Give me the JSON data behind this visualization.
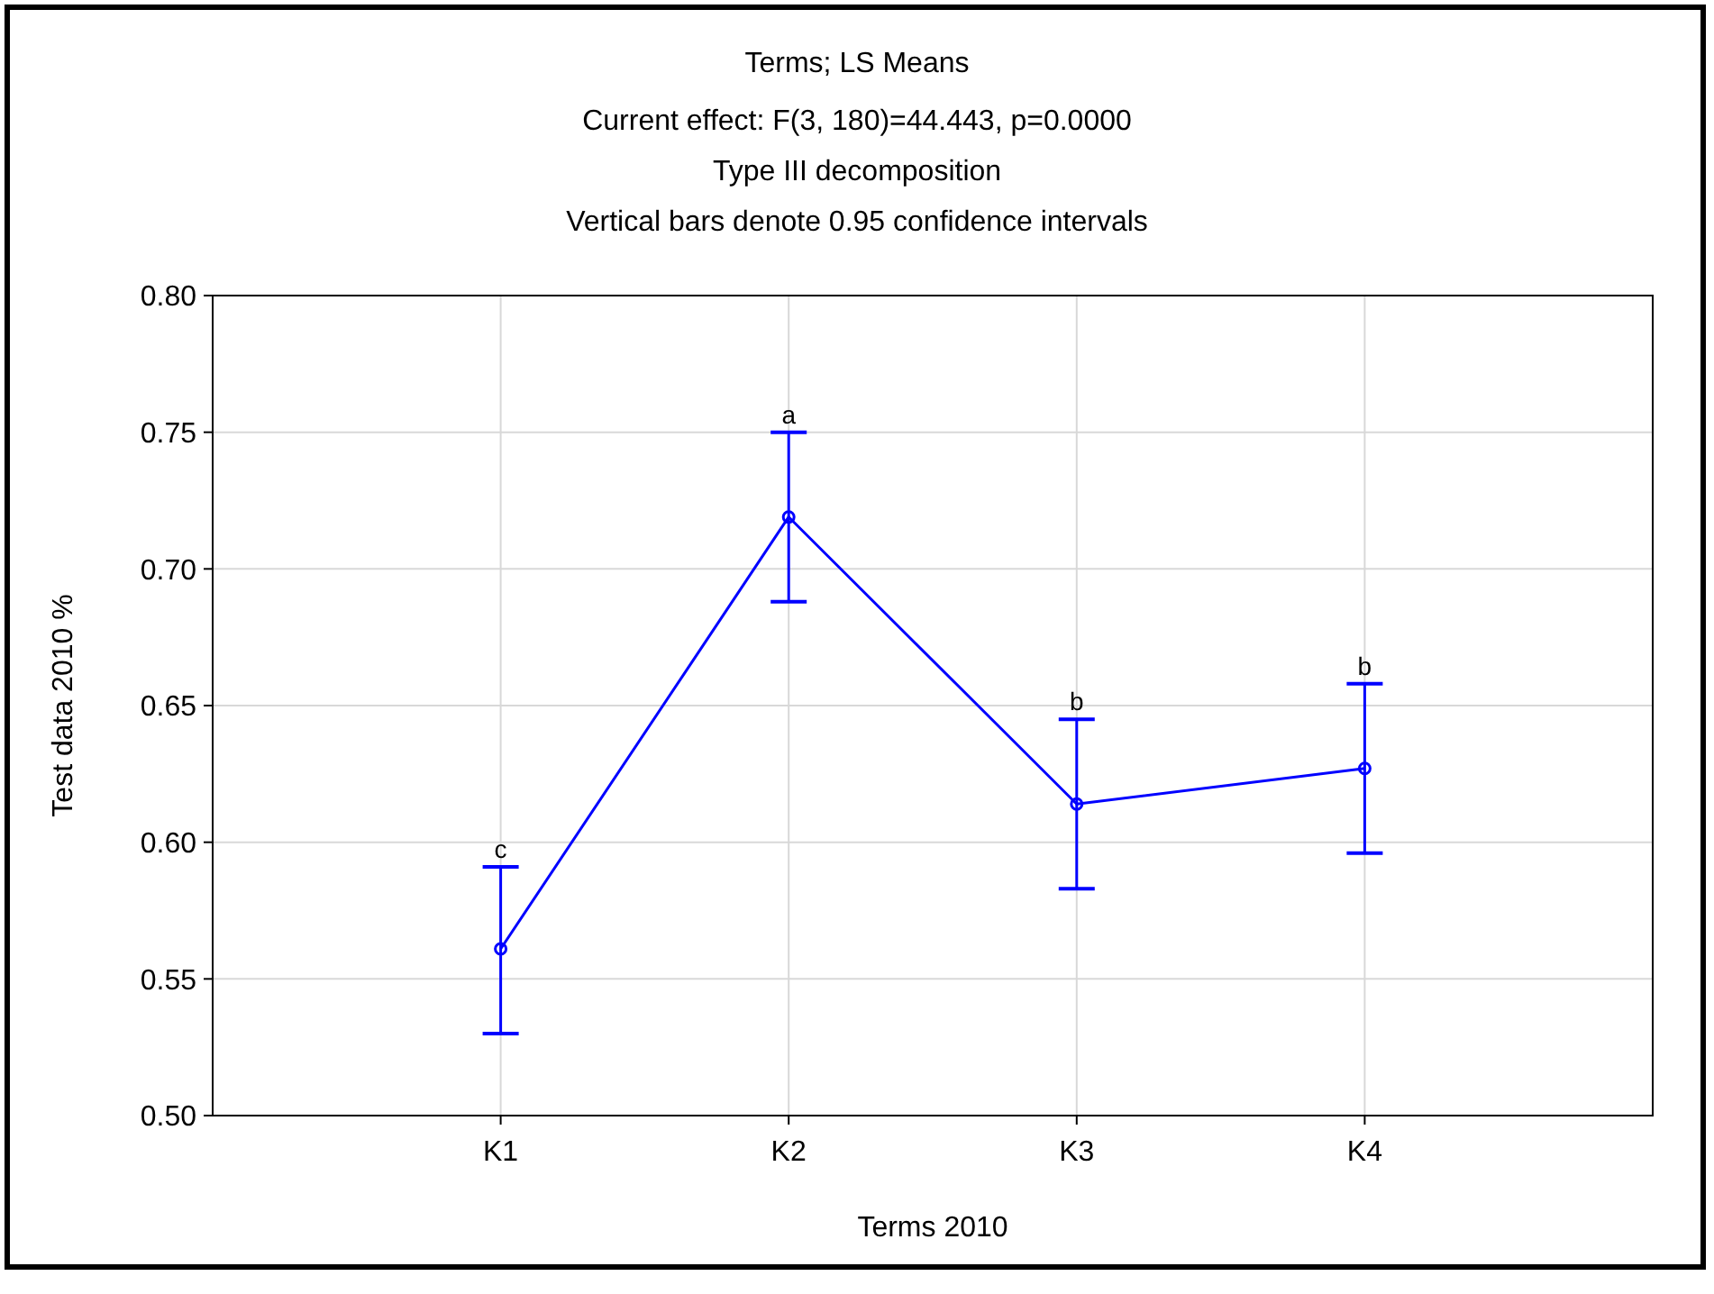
{
  "chart_data": {
    "type": "line",
    "title": "Terms; LS Means",
    "subtitle": "Current effect: F(3, 180)=44.443, p=0.0000\nType III decomposition\nVertical bars denote 0.95 confidence intervals",
    "xlabel": "Terms 2010",
    "ylabel": "Test data 2010 %",
    "categories": [
      "K1",
      "K2",
      "K3",
      "K4"
    ],
    "series": [
      {
        "color": "#0000ff",
        "values": [
          0.561,
          0.719,
          0.614,
          0.627
        ],
        "errors": [
          [
            0.53,
            0.591
          ],
          [
            0.688,
            0.75
          ],
          [
            0.583,
            0.645
          ],
          [
            0.596,
            0.658
          ]
        ]
      }
    ],
    "ylim": [
      0.5,
      0.8
    ],
    "yticks": [
      {
        "value": 0.5,
        "label": "0.50"
      },
      {
        "value": 0.55,
        "label": "0.55"
      },
      {
        "value": 0.6,
        "label": "0.60"
      },
      {
        "value": 0.65,
        "label": "0.65"
      },
      {
        "value": 0.7,
        "label": "0.70"
      },
      {
        "value": 0.75,
        "label": "0.75"
      },
      {
        "value": 0.8,
        "label": "0.80"
      }
    ],
    "grid": true,
    "marker": "circle",
    "line_style": "solid",
    "annotations": [
      {
        "text": "c",
        "x": "K1",
        "y": 0.591
      },
      {
        "text": "a",
        "x": "K2",
        "y": 0.75
      },
      {
        "text": "b",
        "x": "K3",
        "y": 0.645
      },
      {
        "text": "b",
        "x": "K4",
        "y": 0.658
      }
    ]
  }
}
